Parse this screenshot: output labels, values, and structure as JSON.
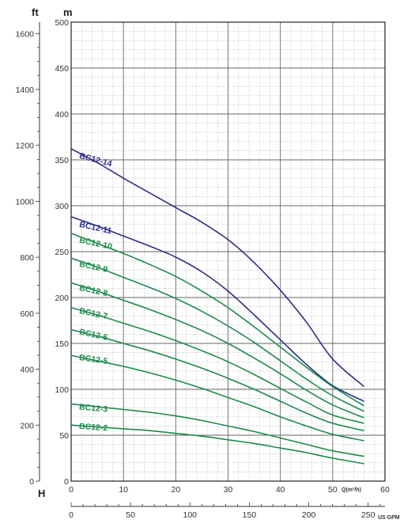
{
  "chart_data": {
    "type": "line",
    "axes": {
      "y_m": {
        "unit": "m",
        "min": 0,
        "max": 500,
        "major_step": 50,
        "ticks": [
          0,
          50,
          100,
          150,
          200,
          250,
          300,
          350,
          400,
          450,
          500
        ]
      },
      "y_ft": {
        "unit": "ft",
        "ticks": [
          0,
          200,
          400,
          600,
          800,
          1000,
          1200,
          1400,
          1600
        ],
        "axis_letter": "H"
      },
      "x_m3h": {
        "unit": "Q(m³/h)",
        "min": 0,
        "max": 60,
        "ticks": [
          0,
          10,
          20,
          30,
          40,
          50,
          60
        ]
      },
      "x_usgpm": {
        "unit": "US GPM",
        "ticks": [
          0,
          50,
          100,
          150,
          200,
          250
        ]
      }
    },
    "grid": true,
    "series": [
      {
        "name": "BC12-14",
        "color": "#2b2f86",
        "label_x": 1.5,
        "label_y": 352,
        "label_rot": 15,
        "points": [
          [
            0,
            362
          ],
          [
            5,
            347
          ],
          [
            10,
            330
          ],
          [
            15,
            314
          ],
          [
            20,
            298
          ],
          [
            25,
            282
          ],
          [
            30,
            263
          ],
          [
            35,
            238
          ],
          [
            40,
            208
          ],
          [
            45,
            173
          ],
          [
            50,
            133
          ],
          [
            56,
            103
          ]
        ]
      },
      {
        "name": "BC12-11",
        "color": "#2b2f86",
        "label_x": 1.5,
        "label_y": 277,
        "label_rot": 12,
        "points": [
          [
            0,
            288
          ],
          [
            5,
            278
          ],
          [
            10,
            267
          ],
          [
            15,
            256
          ],
          [
            20,
            244
          ],
          [
            25,
            228
          ],
          [
            30,
            207
          ],
          [
            35,
            181
          ],
          [
            40,
            154
          ],
          [
            45,
            127
          ],
          [
            50,
            104
          ],
          [
            56,
            87
          ]
        ]
      },
      {
        "name": "BC12-10",
        "color": "#1e8a4c",
        "label_x": 1.5,
        "label_y": 260,
        "label_rot": 12,
        "points": [
          [
            0,
            270
          ],
          [
            5,
            259
          ],
          [
            10,
            248
          ],
          [
            15,
            236
          ],
          [
            20,
            223
          ],
          [
            25,
            207
          ],
          [
            30,
            189
          ],
          [
            35,
            168
          ],
          [
            40,
            146
          ],
          [
            45,
            124
          ],
          [
            50,
            103
          ],
          [
            56,
            82
          ]
        ]
      },
      {
        "name": "BC12-9",
        "color": "#1e8a4c",
        "label_x": 1.5,
        "label_y": 234,
        "label_rot": 12,
        "points": [
          [
            0,
            243
          ],
          [
            5,
            233
          ],
          [
            10,
            222
          ],
          [
            15,
            211
          ],
          [
            20,
            199
          ],
          [
            25,
            185
          ],
          [
            30,
            169
          ],
          [
            35,
            151
          ],
          [
            40,
            131
          ],
          [
            45,
            111
          ],
          [
            50,
            93
          ],
          [
            56,
            76
          ]
        ]
      },
      {
        "name": "BC12-8",
        "color": "#1e8a4c",
        "label_x": 1.5,
        "label_y": 208,
        "label_rot": 12,
        "points": [
          [
            0,
            216
          ],
          [
            5,
            207
          ],
          [
            10,
            197
          ],
          [
            15,
            187
          ],
          [
            20,
            176
          ],
          [
            25,
            164
          ],
          [
            30,
            150
          ],
          [
            35,
            134
          ],
          [
            40,
            117
          ],
          [
            45,
            99
          ],
          [
            50,
            83
          ],
          [
            56,
            69
          ]
        ]
      },
      {
        "name": "BC12-7",
        "color": "#1e8a4c",
        "label_x": 1.5,
        "label_y": 183,
        "label_rot": 12,
        "points": [
          [
            0,
            189
          ],
          [
            5,
            181
          ],
          [
            10,
            172
          ],
          [
            15,
            163
          ],
          [
            20,
            153
          ],
          [
            25,
            142
          ],
          [
            30,
            130
          ],
          [
            35,
            116
          ],
          [
            40,
            101
          ],
          [
            45,
            86
          ],
          [
            50,
            72
          ],
          [
            56,
            63
          ]
        ]
      },
      {
        "name": "BC12-6",
        "color": "#1e8a4c",
        "label_x": 1.5,
        "label_y": 160,
        "label_rot": 12,
        "points": [
          [
            0,
            165
          ],
          [
            5,
            158
          ],
          [
            10,
            150
          ],
          [
            15,
            142
          ],
          [
            20,
            133
          ],
          [
            25,
            123
          ],
          [
            30,
            112
          ],
          [
            35,
            100
          ],
          [
            40,
            87
          ],
          [
            45,
            74
          ],
          [
            50,
            63
          ],
          [
            56,
            55
          ]
        ]
      },
      {
        "name": "BC12-5",
        "color": "#1e8a4c",
        "label_x": 1.5,
        "label_y": 132,
        "label_rot": 8,
        "points": [
          [
            0,
            137
          ],
          [
            5,
            131
          ],
          [
            10,
            125
          ],
          [
            15,
            118
          ],
          [
            20,
            110
          ],
          [
            25,
            101
          ],
          [
            30,
            91
          ],
          [
            35,
            81
          ],
          [
            40,
            70
          ],
          [
            45,
            60
          ],
          [
            50,
            51
          ],
          [
            56,
            44
          ]
        ]
      },
      {
        "name": "BC12-3",
        "color": "#1e8a4c",
        "label_x": 1.5,
        "label_y": 78,
        "label_rot": 5,
        "points": [
          [
            0,
            84
          ],
          [
            5,
            81
          ],
          [
            10,
            78
          ],
          [
            15,
            75
          ],
          [
            20,
            71
          ],
          [
            25,
            66
          ],
          [
            30,
            60
          ],
          [
            35,
            54
          ],
          [
            40,
            47
          ],
          [
            45,
            40
          ],
          [
            50,
            33
          ],
          [
            56,
            27
          ]
        ]
      },
      {
        "name": "BC12-2",
        "color": "#1e8a4c",
        "label_x": 1.5,
        "label_y": 57,
        "label_rot": 4,
        "points": [
          [
            0,
            61
          ],
          [
            5,
            59
          ],
          [
            10,
            57
          ],
          [
            15,
            55
          ],
          [
            20,
            52
          ],
          [
            25,
            49
          ],
          [
            30,
            45
          ],
          [
            35,
            41
          ],
          [
            40,
            36
          ],
          [
            45,
            31
          ],
          [
            50,
            25
          ],
          [
            56,
            19
          ]
        ]
      }
    ]
  }
}
